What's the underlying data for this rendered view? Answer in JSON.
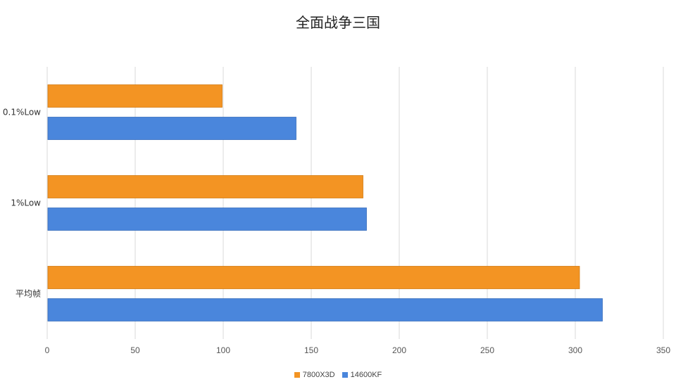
{
  "chart_data": {
    "type": "bar",
    "orientation": "horizontal",
    "title": "全面战争三国",
    "categories": [
      "0.1%Low",
      "1%Low",
      "平均帧"
    ],
    "series": [
      {
        "name": "7800X3D",
        "color": "#F39423",
        "values": [
          99,
          179,
          302
        ]
      },
      {
        "name": "14600KF",
        "color": "#4A86DC",
        "values": [
          141,
          181,
          315
        ]
      }
    ],
    "xlim": [
      0,
      350
    ],
    "xticks": [
      0,
      50,
      100,
      150,
      200,
      250,
      300,
      350
    ],
    "grid": true,
    "legend_position": "bottom"
  }
}
